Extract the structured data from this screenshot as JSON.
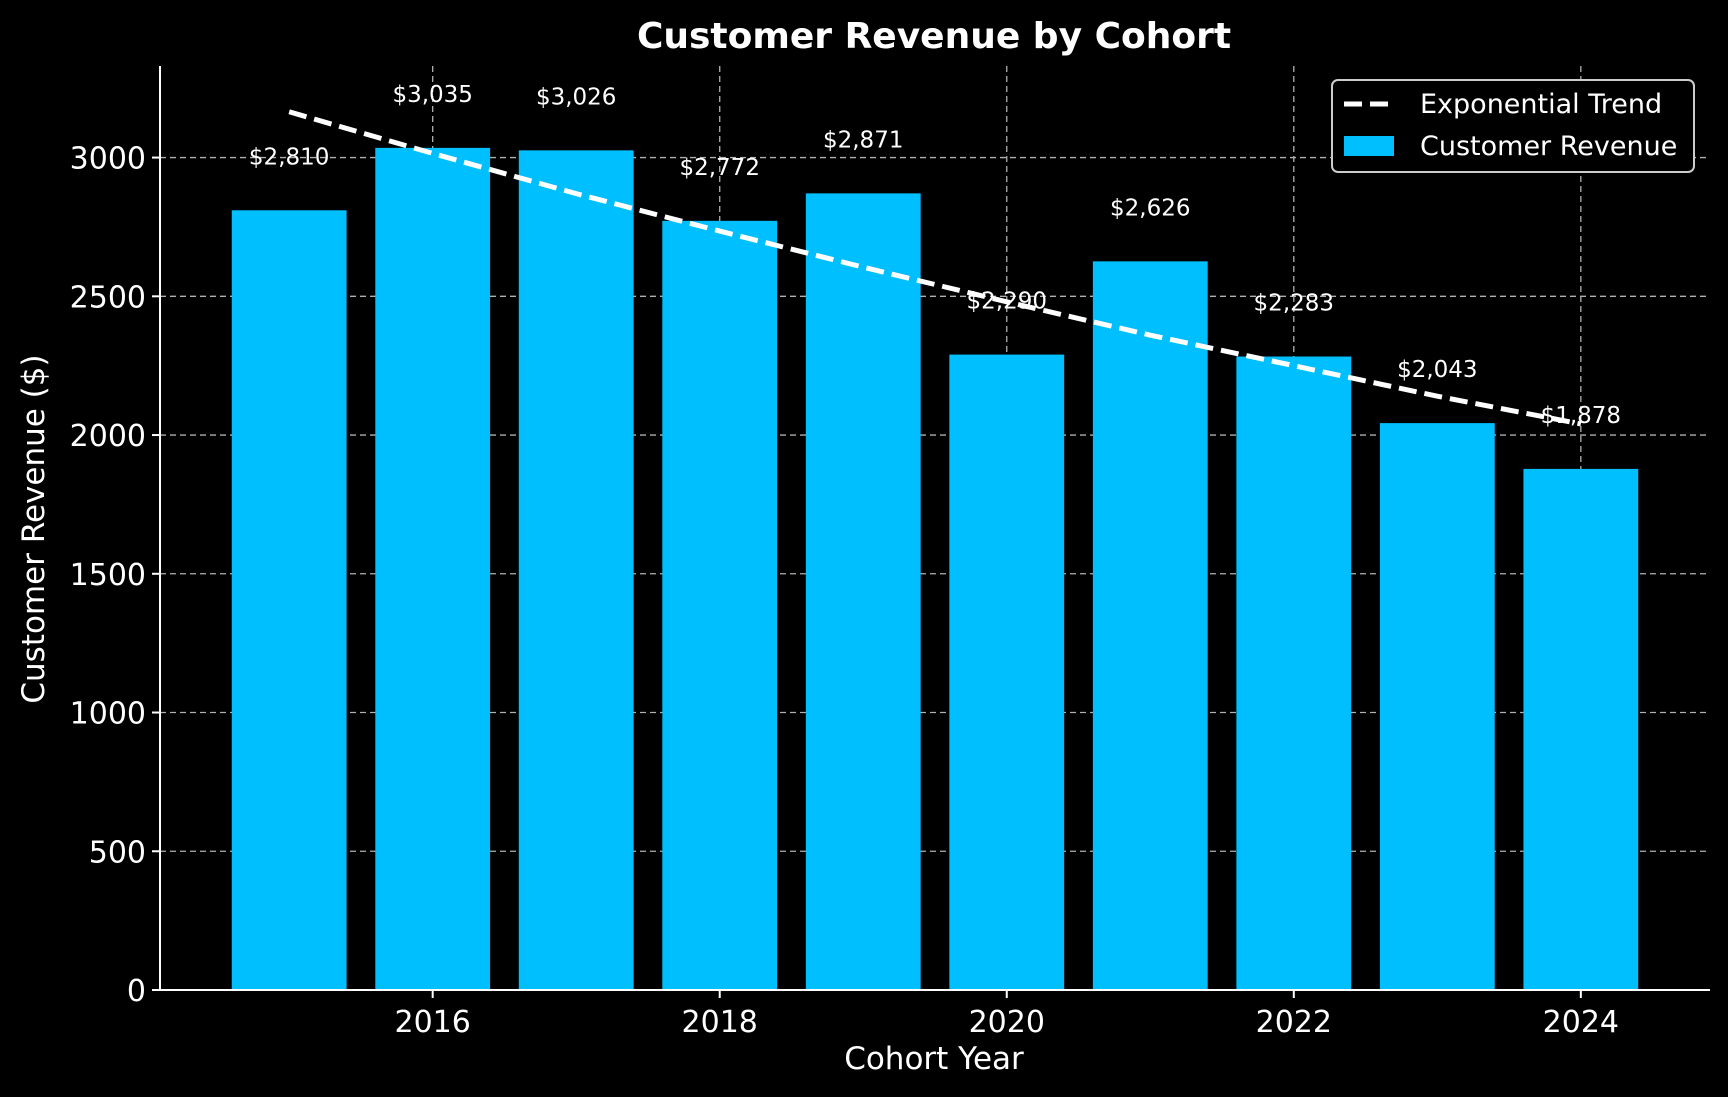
{
  "chart_data": {
    "type": "bar",
    "title": "Customer Revenue by Cohort",
    "xlabel": "Cohort Year",
    "ylabel": "Customer Revenue ($)",
    "categories": [
      2015,
      2016,
      2017,
      2018,
      2019,
      2020,
      2021,
      2022,
      2023,
      2024
    ],
    "series": [
      {
        "name": "Customer Revenue",
        "type": "bar",
        "values": [
          2810,
          3035,
          3026,
          2772,
          2871,
          2290,
          2626,
          2283,
          2043,
          1878
        ],
        "labels": [
          "$2,810",
          "$3,035",
          "$3,026",
          "$2,772",
          "$2,871",
          "$2,290",
          "$2,626",
          "$2,283",
          "$2,043",
          "$1,878"
        ]
      },
      {
        "name": "Exponential Trend",
        "type": "line",
        "style": "dashed",
        "values": [
          3165,
          3015,
          2870,
          2735,
          2605,
          2480,
          2360,
          2250,
          2140,
          2040
        ]
      }
    ],
    "xlim": [
      2014.1,
      2024.9
    ],
    "ylim": [
      0,
      3330
    ],
    "xticks": [
      2016,
      2018,
      2020,
      2022,
      2024
    ],
    "yticks": [
      0,
      500,
      1000,
      1500,
      2000,
      2500,
      3000
    ],
    "grid": true,
    "legend_position": "top-right",
    "colors": {
      "background": "#000000",
      "bar": "#00bfff",
      "trend": "#ffffff",
      "grid": "#b0b0b0",
      "text": "#ffffff"
    }
  }
}
